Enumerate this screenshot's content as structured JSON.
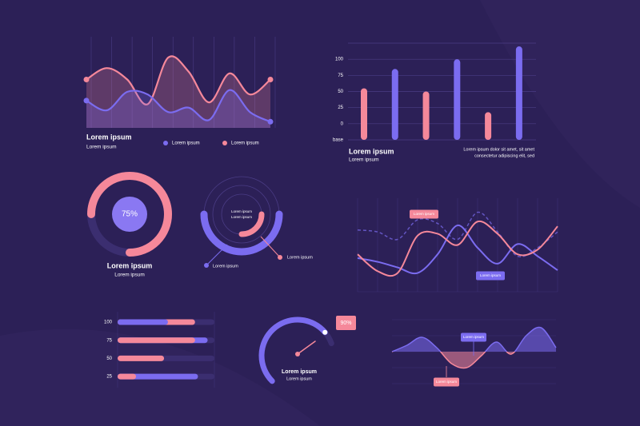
{
  "chart_data": [
    {
      "type": "area-line",
      "title": "Lorem ipsum",
      "subtitle": "Lorem ipsum",
      "ylim": [
        0,
        100
      ],
      "series": [
        {
          "name": "Lorem ipsum",
          "color": "#7b6cf0",
          "values": [
            31,
            20,
            41,
            38,
            18,
            23,
            9,
            43,
            18,
            7
          ]
        },
        {
          "name": "Lorem ipsum",
          "color": "#f5889a",
          "values": [
            55,
            68,
            55,
            27,
            80,
            64,
            29,
            62,
            38,
            55
          ]
        }
      ]
    },
    {
      "type": "bar",
      "title": "Lorem ipsum",
      "subtitle": "Lorem ipsum",
      "note": [
        "Lorem ipsum dolor sit amet, sit amet",
        "consectetur adipiscing elit, sed"
      ],
      "categories": [
        null,
        null,
        null,
        null,
        null,
        null
      ],
      "values": [
        55,
        85,
        50,
        100,
        18,
        120
      ],
      "colors": [
        "#f5889a",
        "#7b6cf0",
        "#f5889a",
        "#7b6cf0",
        "#f5889a",
        "#7b6cf0"
      ],
      "ylim": [
        -25,
        125
      ],
      "yticks": [
        {
          "value": -25,
          "label": "base"
        },
        0,
        25,
        50,
        75,
        100
      ],
      "grid": true
    },
    {
      "type": "donut",
      "title": "Lorem ipsum",
      "subtitle": "Lorem ipsum",
      "value": 75,
      "value_label": "75%",
      "color": "#f5889a"
    },
    {
      "type": "radial",
      "center_labels": [
        "Lorem ipsum",
        "Lorem ipsum"
      ],
      "callouts": [
        "Lorem ipsum",
        "Lorem ipsum"
      ],
      "values": [
        50,
        25
      ],
      "colors": [
        "#7b6cf0",
        "#f5889a"
      ]
    },
    {
      "type": "line",
      "callouts": [
        "Lorem ipsum",
        "Lorem ipsum"
      ],
      "ylim": [
        0,
        100
      ],
      "series": [
        {
          "color": "#f5889a",
          "values": [
            40,
            22,
            20,
            60,
            62,
            50,
            75,
            62,
            40,
            45,
            70
          ]
        },
        {
          "color": "#7b6cf0",
          "values": [
            36,
            32,
            26,
            20,
            40,
            71,
            47,
            30,
            51,
            38,
            23
          ]
        },
        {
          "color": "#7b6cf0",
          "dashed": true,
          "values": [
            66,
            64,
            56,
            77,
            73,
            56,
            85,
            64,
            38,
            47,
            64
          ]
        }
      ]
    },
    {
      "type": "hbar",
      "categories": [
        "100",
        "75",
        "50",
        "25"
      ],
      "xlim": [
        0,
        100
      ],
      "series": [
        {
          "color": "#7b6cf0",
          "values": [
            52,
            93,
            0,
            83
          ]
        },
        {
          "color": "#f5889a",
          "values": [
            80,
            80,
            48,
            19
          ]
        }
      ]
    },
    {
      "type": "gauge",
      "title": "Lorem ipsum",
      "subtitle": "Lorem ipsum",
      "value": 90,
      "value_label": "90%",
      "color": "#7b6cf0"
    },
    {
      "type": "wave",
      "callouts": [
        "Lorem ipsum",
        "Lorem ipsum"
      ],
      "ylim": [
        -40,
        40
      ],
      "values": [
        0,
        8,
        18,
        5,
        -15,
        -20,
        -5,
        12,
        -3,
        20,
        30,
        5
      ],
      "colors": [
        "#7b6cf0",
        "#f5889a"
      ]
    }
  ]
}
